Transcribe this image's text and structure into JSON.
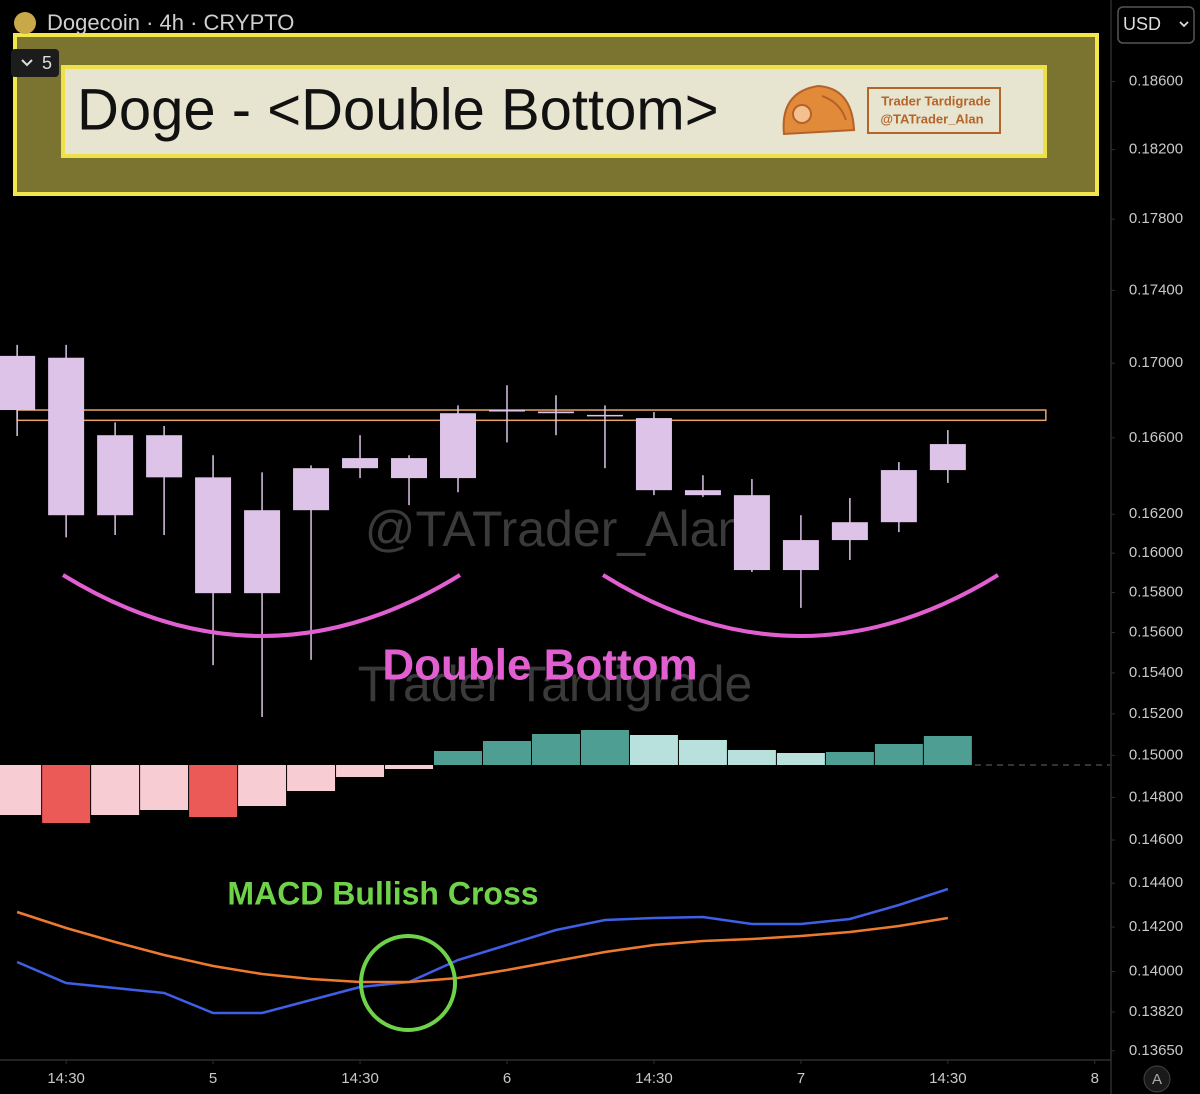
{
  "chart_data": {
    "type": "candlestick",
    "header": "Dogecoin · 4h · CRYPTO",
    "indicator_count": 5,
    "title": "Doge - <Double Bottom>",
    "logo": [
      "Trader Tardigrade",
      "@TATrader_Alan"
    ],
    "currency": "USD",
    "scale_button": "A",
    "watermarks": [
      "@TATrader_Alan",
      "Trader Tardigrade"
    ],
    "annotations": [
      {
        "text": "Double Bottom",
        "color": "#e25fd2"
      },
      {
        "text": "MACD Bullish Cross",
        "color": "#6fd34a"
      }
    ],
    "log_scale": true,
    "grid": false,
    "ylim": [
      0.1361,
      0.1909
    ],
    "yticks": [
      {
        "value": 0.186,
        "label": "0.18600"
      },
      {
        "value": 0.182,
        "label": "0.18200"
      },
      {
        "value": 0.178,
        "label": "0.17800"
      },
      {
        "value": 0.174,
        "label": "0.17400"
      },
      {
        "value": 0.17,
        "label": "0.17000"
      },
      {
        "value": 0.166,
        "label": "0.16600"
      },
      {
        "value": 0.162,
        "label": "0.16200"
      },
      {
        "value": 0.16,
        "label": "0.16000"
      },
      {
        "value": 0.158,
        "label": "0.15800"
      },
      {
        "value": 0.156,
        "label": "0.15600"
      },
      {
        "value": 0.154,
        "label": "0.15400"
      },
      {
        "value": 0.152,
        "label": "0.15200"
      },
      {
        "value": 0.15,
        "label": "0.15000"
      },
      {
        "value": 0.148,
        "label": "0.14800"
      },
      {
        "value": 0.146,
        "label": "0.14600"
      },
      {
        "value": 0.144,
        "label": "0.14400"
      },
      {
        "value": 0.142,
        "label": "0.14200"
      },
      {
        "value": 0.14,
        "label": "0.14000"
      },
      {
        "value": 0.1382,
        "label": "0.13820"
      },
      {
        "value": 0.1365,
        "label": "0.13650"
      }
    ],
    "xlim": [
      -0.35,
      22.31
    ],
    "xticks": [
      {
        "value": 1,
        "label": "14:30"
      },
      {
        "value": 4,
        "label": "5"
      },
      {
        "value": 7,
        "label": "14:30"
      },
      {
        "value": 10,
        "label": "6"
      },
      {
        "value": 13,
        "label": "14:30"
      },
      {
        "value": 16,
        "label": "7"
      },
      {
        "value": 19,
        "label": "14:30"
      },
      {
        "value": 22,
        "label": "8"
      }
    ],
    "candle_color": "#dcc3e7",
    "open": [
      0.1704,
      0.1703,
      0.16195,
      0.16614,
      0.16392,
      0.15797,
      0.16221,
      0.1644,
      0.16493,
      0.16388,
      0.16748,
      0.1674,
      0.16722,
      0.16705,
      0.16325,
      0.16299,
      0.15914,
      0.16067,
      0.16159,
      0.1643
    ],
    "high": [
      0.171,
      0.171,
      0.16682,
      0.16663,
      0.16508,
      0.16418,
      0.16455,
      0.16614,
      0.16508,
      0.16773,
      0.16881,
      0.16827,
      0.16773,
      0.16737,
      0.16403,
      0.16383,
      0.16195,
      0.16284,
      0.16472,
      0.16641
    ],
    "low": [
      0.1661,
      0.16081,
      0.16093,
      0.16093,
      0.15438,
      0.15185,
      0.15464,
      0.16388,
      0.16247,
      0.16314,
      0.16576,
      0.16614,
      0.1644,
      0.16299,
      0.1629,
      0.15904,
      0.15723,
      0.15965,
      0.16108,
      0.16363
    ],
    "close": [
      0.16748,
      0.16195,
      0.16614,
      0.16392,
      0.15797,
      0.16221,
      0.1644,
      0.16493,
      0.16388,
      0.16731,
      0.1674,
      0.16731,
      0.16714,
      0.16325,
      0.16299,
      0.15914,
      0.16067,
      0.16159,
      0.1643,
      0.16567
    ],
    "resistance": {
      "x": [
        0,
        21
      ],
      "y": [
        0.16693,
        0.16748
      ],
      "color": "#e9a46a"
    },
    "macd": {
      "y2lim": [
        -29.5,
        76.5
      ],
      "histogram": {
        "values": [
          -5.0,
          -5.8,
          -5.0,
          -4.5,
          -5.2,
          -4.1,
          -2.6,
          -1.2,
          -0.4,
          1.4,
          2.4,
          3.1,
          3.5,
          3.0,
          2.5,
          1.5,
          1.2,
          1.3,
          2.1,
          2.9
        ],
        "colors": [
          "#f7cdd3",
          "#ec5a58",
          "#f7cdd3",
          "#f7cdd3",
          "#ec5a58",
          "#f7cdd3",
          "#f7cdd3",
          "#f7cdd3",
          "#f7cdd3",
          "#4f9e94",
          "#4f9e94",
          "#4f9e94",
          "#4f9e94",
          "#b8e0dc",
          "#b8e0dc",
          "#b8e0dc",
          "#b8e0dc",
          "#4f9e94",
          "#4f9e94",
          "#4f9e94"
        ]
      },
      "series": [
        {
          "color": "#3f5fe6",
          "values": [
            -19.7,
            -21.8,
            -22.3,
            -22.8,
            -24.8,
            -24.8,
            -23.5,
            -22.2,
            -21.7,
            -19.5,
            -18.0,
            -16.5,
            -15.5,
            -15.3,
            -15.2,
            -15.9,
            -15.9,
            -15.4,
            -14.0,
            -12.4
          ]
        },
        {
          "color": "#ee7a30",
          "values": [
            -14.7,
            -16.3,
            -17.7,
            -19.0,
            -20.1,
            -20.9,
            -21.4,
            -21.7,
            -21.7,
            -21.3,
            -20.5,
            -19.6,
            -18.7,
            -18.0,
            -17.6,
            -17.4,
            -17.1,
            -16.7,
            -16.1,
            -15.3
          ]
        }
      ]
    }
  }
}
